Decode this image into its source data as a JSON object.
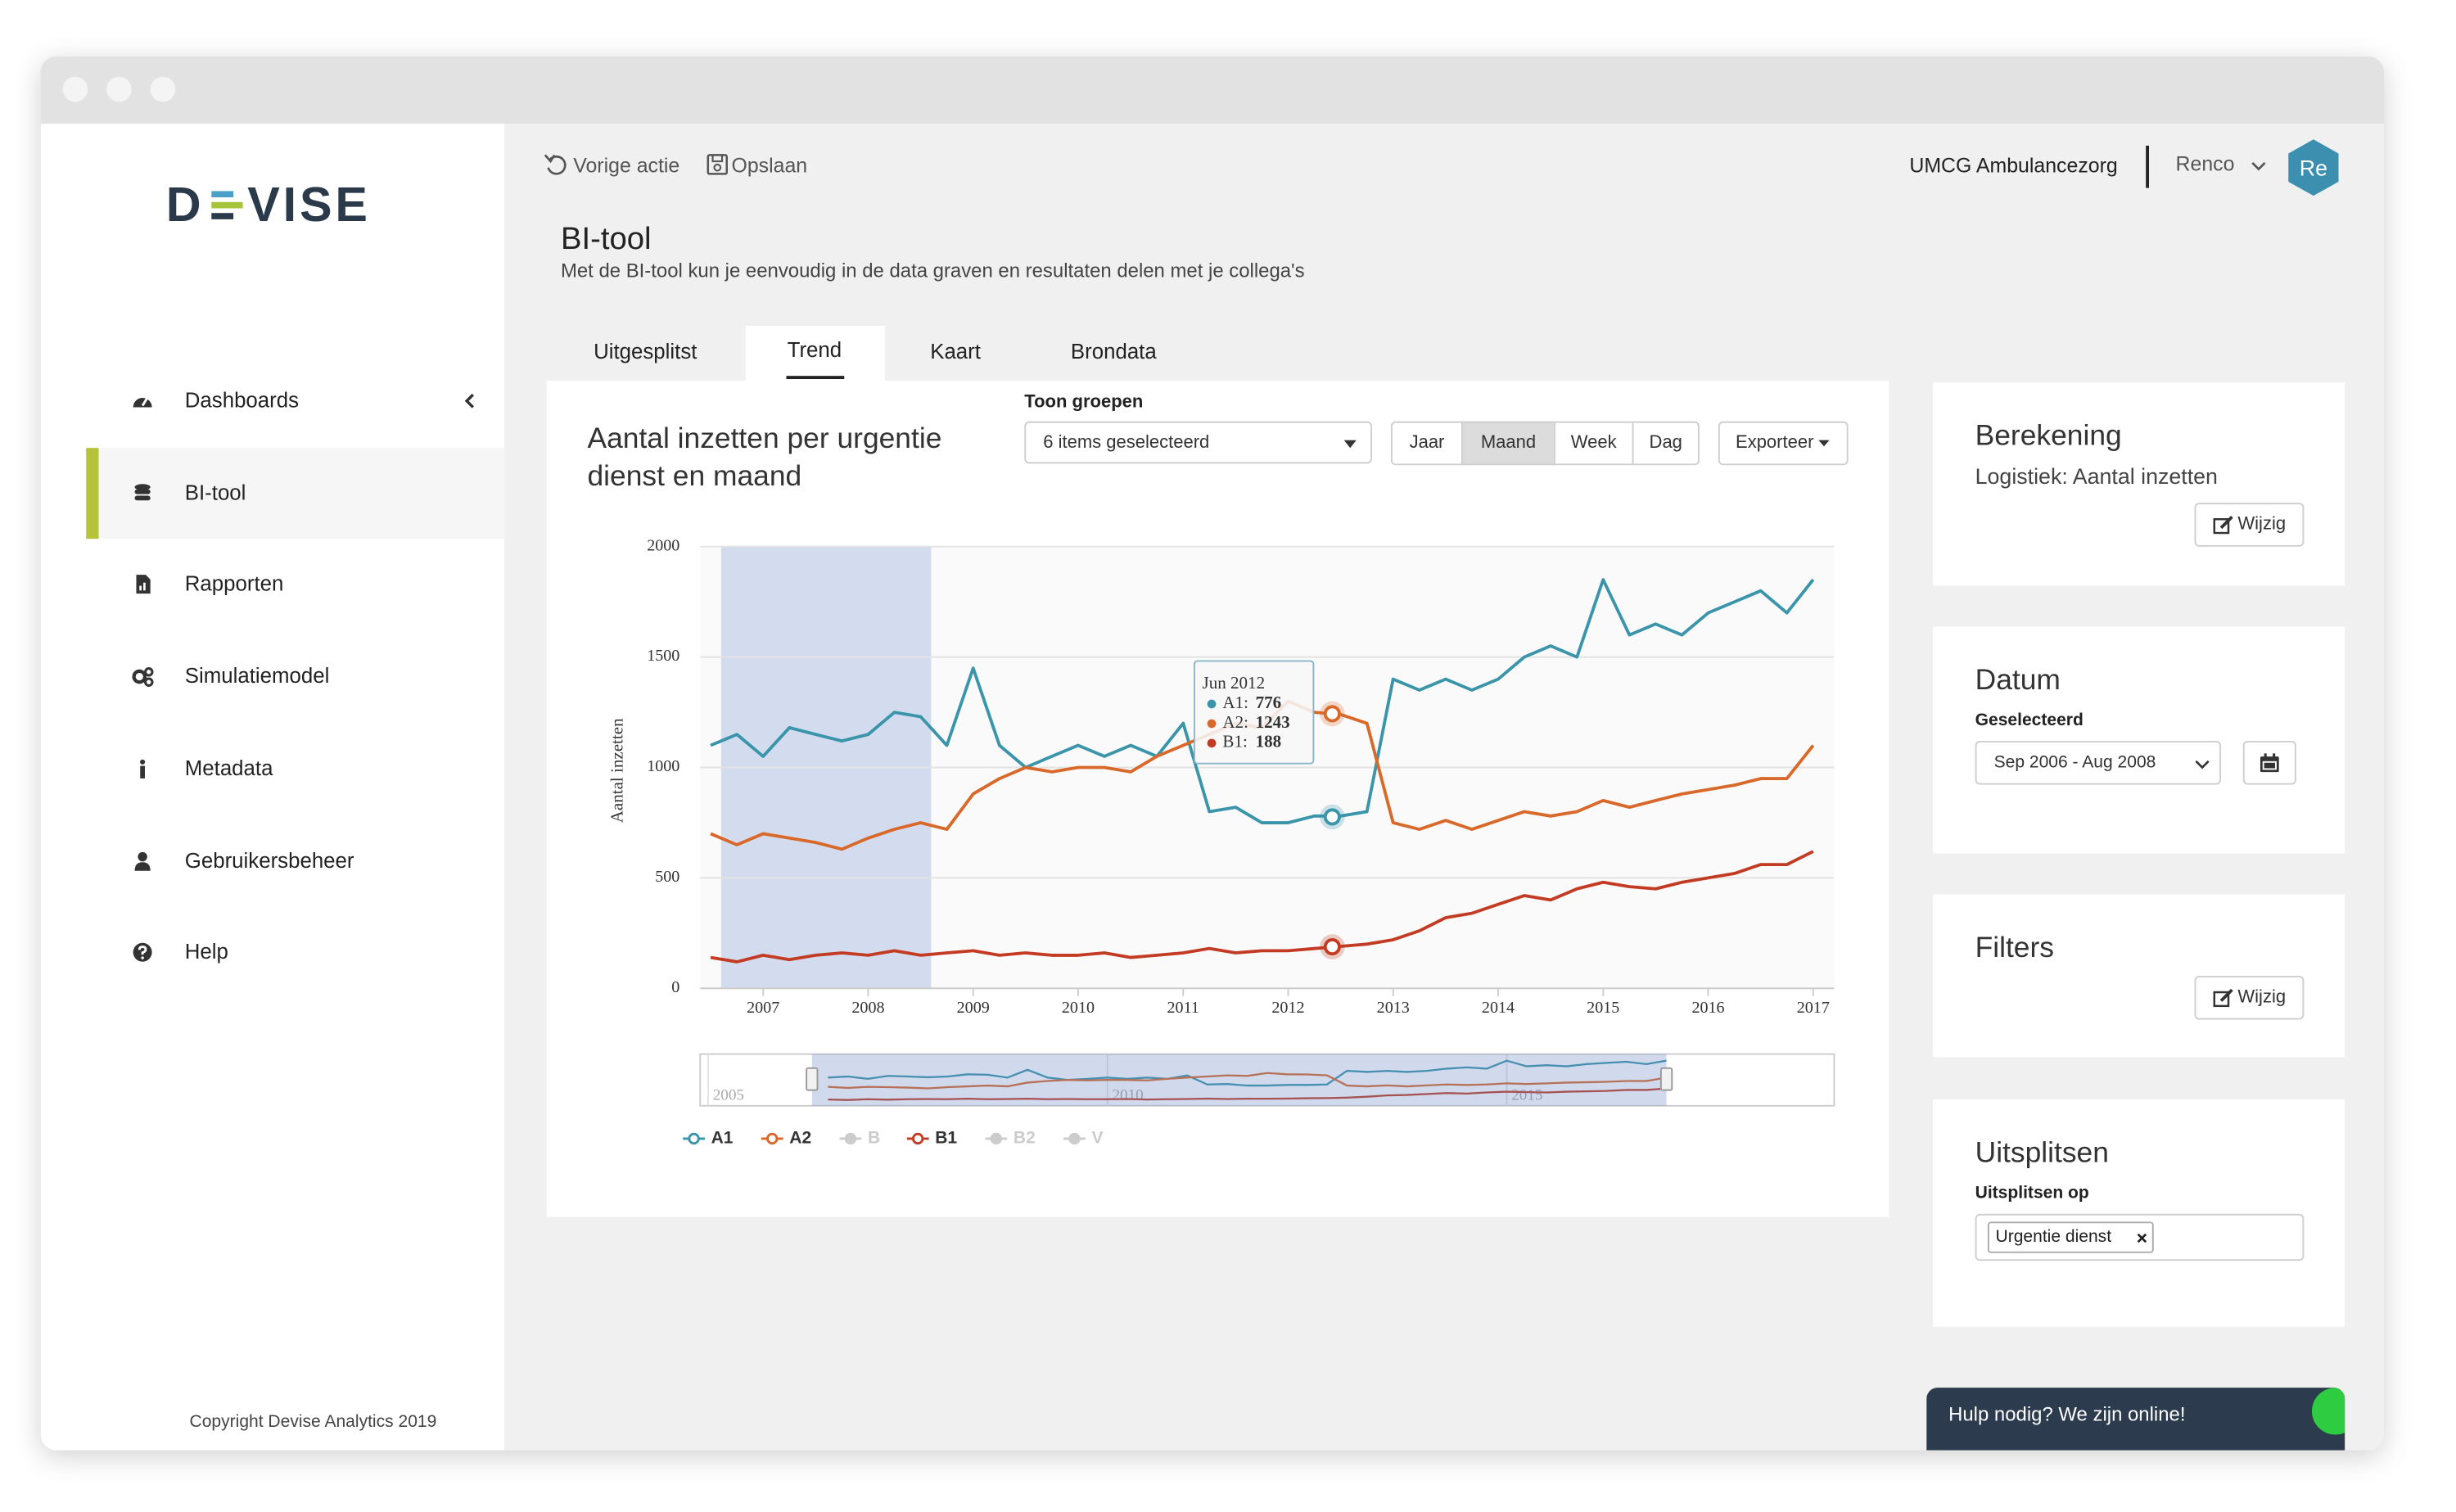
{
  "sidebar": {
    "logo_left": "D",
    "logo_right": "VISE",
    "nav": [
      {
        "label": "Dashboards"
      },
      {
        "label": "BI-tool",
        "active": true
      },
      {
        "label": "Rapporten"
      },
      {
        "label": "Simulatiemodel"
      },
      {
        "label": "Metadata"
      },
      {
        "label": "Gebruikersbeheer"
      },
      {
        "label": "Help"
      }
    ],
    "copyright": "Copyright Devise Analytics 2019"
  },
  "topbar": {
    "undo": "Vorige actie",
    "save": "Opslaan",
    "organization": "UMCG Ambulancezorg",
    "user": "Renco",
    "avatar": "Re"
  },
  "header": {
    "title": "BI-tool",
    "subtitle": "Met de BI-tool kun je eenvoudig in de data graven en resultaten delen met je collega's"
  },
  "tabs": [
    {
      "label": "Uitgesplitst"
    },
    {
      "label": "Trend",
      "active": true
    },
    {
      "label": "Kaart"
    },
    {
      "label": "Brondata"
    }
  ],
  "controls": {
    "groups_label": "Toon groepen",
    "groups_value": "6 items geselecteerd",
    "periods": [
      {
        "label": "Jaar"
      },
      {
        "label": "Maand",
        "active": true
      },
      {
        "label": "Week"
      },
      {
        "label": "Dag"
      }
    ],
    "export": "Exporteer"
  },
  "trend_chart": {
    "type": "line",
    "title": "Aantal inzetten per urgentie dienst en maand",
    "y_label": "Aantal inzetten",
    "x": [
      2006.5,
      2006.75,
      2007,
      2007.25,
      2007.5,
      2007.75,
      2008,
      2008.25,
      2008.5,
      2008.75,
      2009,
      2009.25,
      2009.5,
      2009.75,
      2010,
      2010.25,
      2010.5,
      2010.75,
      2011,
      2011.25,
      2011.5,
      2011.75,
      2012,
      2012.25,
      2012.5,
      2012.75,
      2013,
      2013.25,
      2013.5,
      2013.75,
      2014,
      2014.25,
      2014.5,
      2014.75,
      2015,
      2015.25,
      2015.5,
      2015.75,
      2016,
      2016.25,
      2016.5,
      2016.75,
      2017
    ],
    "series": [
      {
        "name": "A1",
        "color": "#3a94aa",
        "values": [
          1100,
          1150,
          1050,
          1180,
          1150,
          1120,
          1150,
          1250,
          1230,
          1100,
          1450,
          1100,
          1000,
          1050,
          1100,
          1050,
          1100,
          1050,
          1200,
          800,
          820,
          750,
          750,
          780,
          780,
          800,
          1400,
          1350,
          1400,
          1350,
          1400,
          1500,
          1550,
          1500,
          1850,
          1600,
          1650,
          1600,
          1700,
          1750,
          1800,
          1700,
          1850
        ]
      },
      {
        "name": "A2",
        "color": "#d9692a",
        "values": [
          700,
          650,
          700,
          680,
          660,
          630,
          680,
          720,
          750,
          720,
          880,
          950,
          1000,
          980,
          1000,
          1000,
          980,
          1050,
          1100,
          1150,
          1200,
          1180,
          1300,
          1250,
          1240,
          1200,
          750,
          720,
          760,
          720,
          760,
          800,
          780,
          800,
          850,
          820,
          850,
          880,
          900,
          920,
          950,
          950,
          1100
        ]
      },
      {
        "name": "B",
        "color": "#cccccc",
        "hidden": true
      },
      {
        "name": "B1",
        "color": "#c23b22",
        "values": [
          140,
          120,
          150,
          130,
          150,
          160,
          150,
          170,
          150,
          160,
          170,
          150,
          160,
          150,
          150,
          160,
          140,
          150,
          160,
          180,
          160,
          170,
          170,
          180,
          190,
          200,
          220,
          260,
          320,
          340,
          380,
          420,
          400,
          450,
          480,
          460,
          450,
          480,
          500,
          520,
          560,
          560,
          620
        ]
      },
      {
        "name": "B2",
        "color": "#cccccc",
        "hidden": true
      },
      {
        "name": "V",
        "color": "#cccccc",
        "hidden": true
      }
    ],
    "xlim": [
      2006.4,
      2017.2
    ],
    "xticks": [
      2007,
      2008,
      2009,
      2010,
      2011,
      2012,
      2013,
      2014,
      2015,
      2016,
      2017
    ],
    "ylim": [
      0,
      2000
    ],
    "yticks": [
      0,
      500,
      1000,
      1500,
      2000
    ],
    "grid": true,
    "highlight": [
      2006.6,
      2008.6
    ],
    "tooltip": {
      "title": "Jun 2012",
      "x": 2012.42,
      "rows": [
        {
          "label": "A1:",
          "value": 776,
          "color": "#3a94aa"
        },
        {
          "label": "A2:",
          "value": 1243,
          "color": "#d9692a"
        },
        {
          "label": "B1:",
          "value": 188,
          "color": "#c23b22"
        }
      ]
    },
    "navigator": {
      "xlim": [
        2004.9,
        2019.1
      ],
      "xticks": [
        2005,
        2010,
        2015
      ],
      "selection": [
        2006.3,
        2017.0
      ]
    }
  },
  "panels": {
    "calculation": {
      "title": "Berekening",
      "value": "Logistiek: Aantal inzetten",
      "button": "Wijzig"
    },
    "date": {
      "title": "Datum",
      "label": "Geselecteerd",
      "value": "Sep 2006 - Aug 2008"
    },
    "filters": {
      "title": "Filters",
      "button": "Wijzig"
    },
    "split": {
      "title": "Uitsplitsen",
      "label": "Uitsplitsen op",
      "tag": "Urgentie dienst"
    }
  },
  "chat": "Hulp nodig? We zijn online!"
}
